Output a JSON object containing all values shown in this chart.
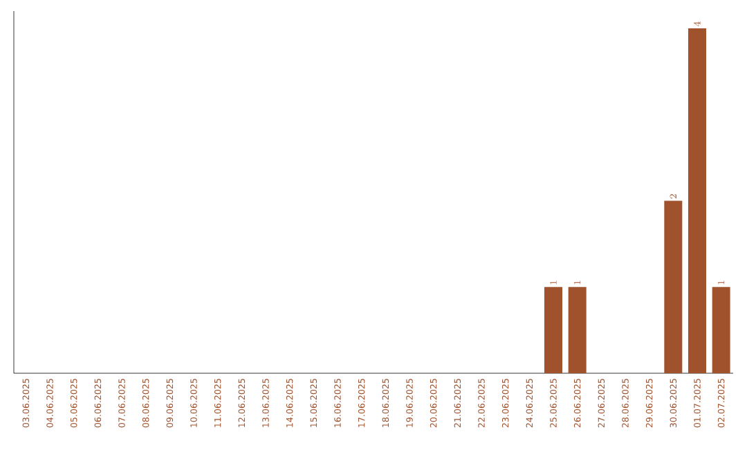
{
  "chart_data": {
    "type": "bar",
    "categories": [
      "03.06.2025",
      "04.06.2025",
      "05.06.2025",
      "06.06.2025",
      "07.06.2025",
      "08.06.2025",
      "09.06.2025",
      "10.06.2025",
      "11.06.2025",
      "12.06.2025",
      "13.06.2025",
      "14.06.2025",
      "15.06.2025",
      "16.06.2025",
      "17.06.2025",
      "18.06.2025",
      "19.06.2025",
      "20.06.2025",
      "21.06.2025",
      "22.06.2025",
      "23.06.2025",
      "24.06.2025",
      "25.06.2025",
      "26.06.2025",
      "27.06.2025",
      "28.06.2025",
      "29.06.2025",
      "30.06.2025",
      "01.07.2025",
      "02.07.2025"
    ],
    "values": [
      null,
      null,
      null,
      null,
      null,
      null,
      null,
      null,
      null,
      null,
      null,
      null,
      null,
      null,
      null,
      null,
      null,
      null,
      null,
      null,
      null,
      null,
      1,
      1,
      null,
      null,
      null,
      2,
      4,
      1
    ],
    "color": "#a0522d",
    "ylim": [
      0,
      4.2
    ],
    "data_labels": true,
    "tick_labels": "x"
  }
}
